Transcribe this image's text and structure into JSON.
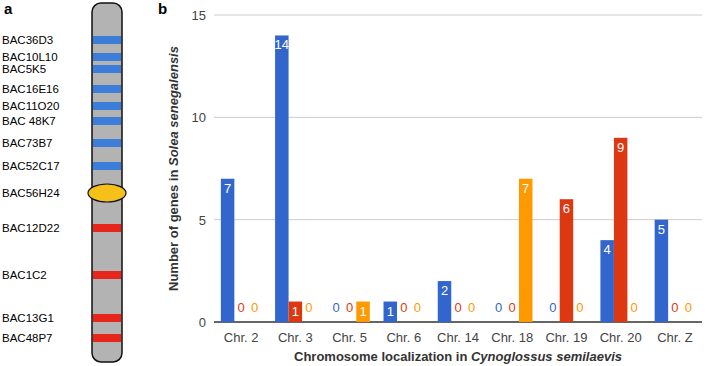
{
  "diagram": {
    "label": "a",
    "chromosome_color": "#b3b3b3",
    "bacs": [
      {
        "label": "BAC36D3",
        "color": "#3b7dd8"
      },
      {
        "label": "BAC10L10",
        "color": "#3b7dd8"
      },
      {
        "label": "BAC5K5",
        "color": "#3b7dd8"
      },
      {
        "label": "BAC16E16",
        "color": "#3b7dd8"
      },
      {
        "label": "BAC11O20",
        "color": "#3b7dd8"
      },
      {
        "label": "BAC 48K7",
        "color": "#3b7dd8"
      },
      {
        "label": "BAC73B7",
        "color": "#3b7dd8"
      },
      {
        "label": "BAC52C17",
        "color": "#3b7dd8"
      },
      {
        "label": "BAC56H24",
        "color": "#f5c118",
        "centromere": true
      },
      {
        "label": "BAC12D22",
        "color": "#e8251b"
      },
      {
        "label": "BAC1C2",
        "color": "#e8251b"
      },
      {
        "label": "BAC13G1",
        "color": "#e8251b"
      },
      {
        "label": "BAC48P7",
        "color": "#e8251b"
      }
    ]
  },
  "chart_data": {
    "type": "bar",
    "title": "b",
    "x_label": "Chromosome localization in Cynoglossus semilaevis",
    "y_label": "Number of genes in Solea senegalensis",
    "categories": [
      "Chr. 2",
      "Chr. 3",
      "Chr. 5",
      "Chr. 6",
      "Chr. 14",
      "Chr. 18",
      "Chr. 19",
      "Chr. 20",
      "Chr. Z"
    ],
    "series": [
      {
        "color": "#3366cc",
        "values": [
          7,
          14,
          0,
          1,
          2,
          0,
          0,
          4,
          5
        ]
      },
      {
        "color": "#dc3912",
        "values": [
          0,
          1,
          0,
          0,
          0,
          0,
          6,
          9,
          0
        ]
      },
      {
        "color": "#ff9900",
        "values": [
          0,
          0,
          1,
          0,
          0,
          7,
          0,
          0,
          0
        ]
      }
    ],
    "ylim": [
      0,
      15
    ],
    "yticks": [
      0,
      5,
      10,
      15
    ],
    "grid": true,
    "data_labels": true
  }
}
